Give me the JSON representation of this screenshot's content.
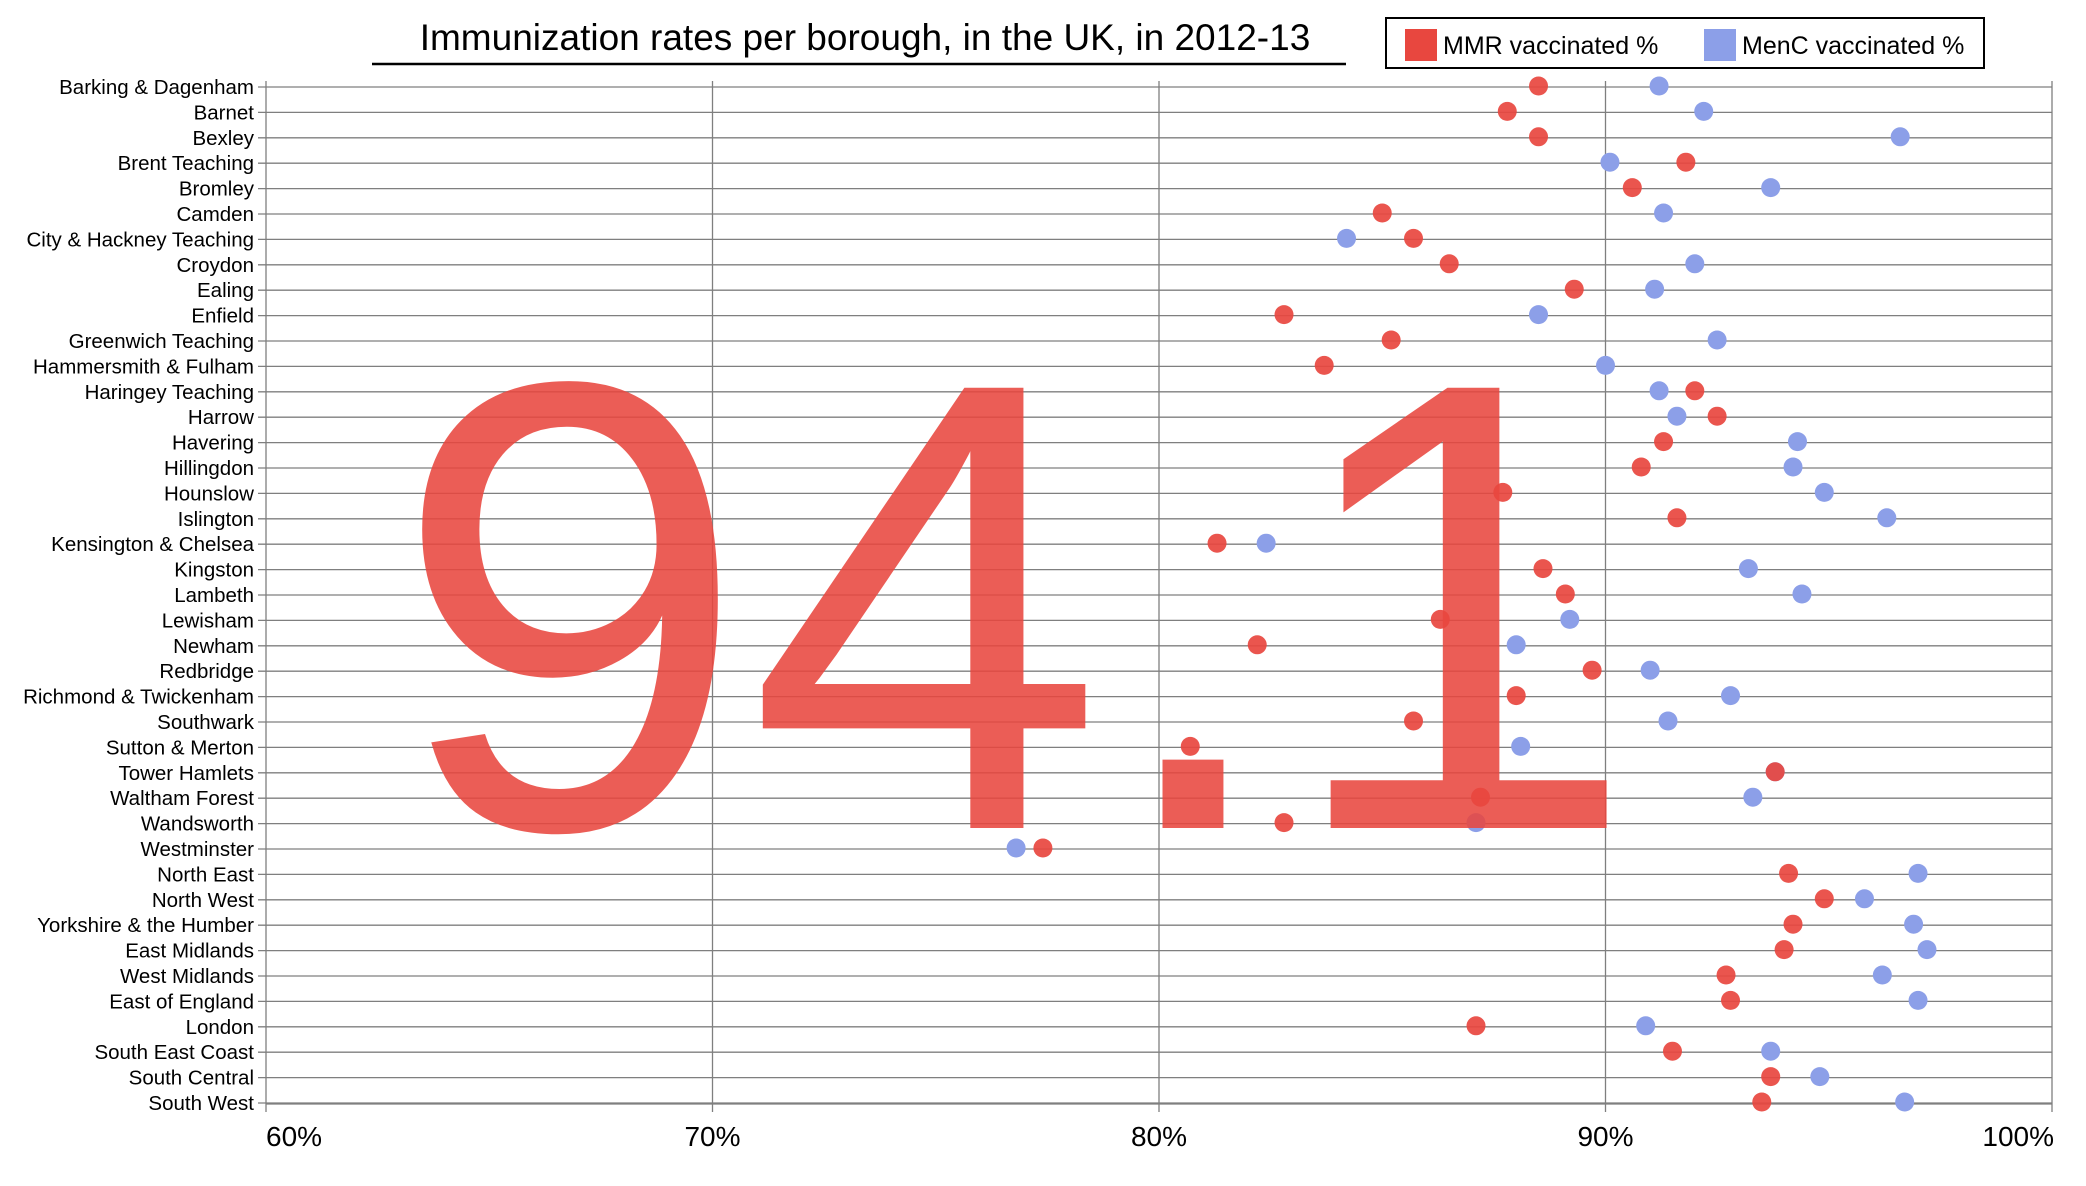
{
  "chart_data": {
    "type": "scatter",
    "title": "Immunization rates per borough, in the UK, in 2012-13",
    "highlight_value": "94.1",
    "xlim": [
      60,
      100
    ],
    "x_ticks": [
      "60%",
      "70%",
      "80%",
      "90%",
      "100%"
    ],
    "grid": true,
    "legend_position": "top-right",
    "categories": [
      "Barking & Dagenham",
      "Barnet",
      "Bexley",
      "Brent Teaching",
      "Bromley",
      "Camden",
      "City & Hackney Teaching",
      "Croydon",
      "Ealing",
      "Enfield",
      "Greenwich Teaching",
      "Hammersmith & Fulham",
      "Haringey Teaching",
      "Harrow",
      "Havering",
      "Hillingdon",
      "Hounslow",
      "Islington",
      "Kensington & Chelsea",
      "Kingston",
      "Lambeth",
      "Lewisham",
      "Newham",
      "Redbridge",
      "Richmond & Twickenham",
      "Southwark",
      "Sutton & Merton",
      "Tower Hamlets",
      "Waltham Forest",
      "Wandsworth",
      "Westminster",
      "North East",
      "North West",
      "Yorkshire & the Humber",
      "East Midlands",
      "West Midlands",
      "East of England",
      "London",
      "South East Coast",
      "South Central",
      "South West"
    ],
    "series": [
      {
        "name": "MMR vaccinated %",
        "color": "#e8473f",
        "values": [
          88.5,
          87.8,
          88.5,
          91.8,
          90.6,
          85.0,
          85.7,
          86.5,
          89.3,
          82.8,
          85.2,
          83.7,
          92.0,
          92.5,
          91.3,
          90.8,
          87.7,
          91.6,
          81.3,
          88.6,
          89.1,
          86.3,
          82.2,
          89.7,
          88.0,
          85.7,
          80.7,
          93.8,
          87.2,
          82.8,
          77.4,
          94.1,
          94.9,
          94.2,
          94.0,
          92.7,
          92.8,
          87.1,
          91.5,
          93.7,
          93.5
        ]
      },
      {
        "name": "MenC vaccinated %",
        "color": "#8c9fe8",
        "values": [
          91.2,
          92.2,
          96.6,
          90.1,
          93.7,
          91.3,
          84.2,
          92.0,
          91.1,
          88.5,
          92.5,
          90.0,
          91.2,
          91.6,
          94.3,
          94.2,
          94.9,
          96.3,
          82.4,
          93.2,
          94.4,
          89.2,
          88.0,
          91.0,
          92.8,
          91.4,
          88.1,
          93.8,
          93.3,
          87.1,
          76.8,
          97.0,
          95.8,
          96.9,
          97.2,
          96.2,
          97.0,
          90.9,
          93.7,
          94.8,
          96.7
        ]
      }
    ]
  }
}
